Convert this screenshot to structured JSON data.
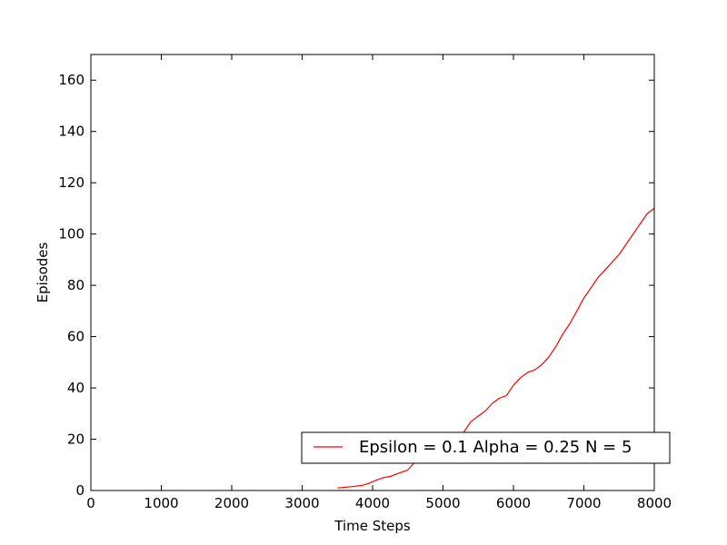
{
  "chart_data": {
    "type": "line",
    "xlabel": "Time Steps",
    "ylabel": "Episodes",
    "xlim": [
      0,
      8000
    ],
    "ylim": [
      0,
      170
    ],
    "xticks": [
      0,
      1000,
      2000,
      3000,
      4000,
      5000,
      6000,
      7000,
      8000
    ],
    "yticks": [
      0,
      20,
      40,
      60,
      80,
      100,
      120,
      140,
      160
    ],
    "grid": false,
    "legend_position": "lower-right",
    "series": [
      {
        "name": "Epsilon = 0.1 Alpha = 0.25 N = 5",
        "color": "#ff0000",
        "x": [
          3500,
          3700,
          3850,
          3950,
          4050,
          4150,
          4250,
          4400,
          4500,
          4600,
          4700,
          4800,
          4900,
          5000,
          5100,
          5200,
          5300,
          5400,
          5500,
          5600,
          5700,
          5800,
          5900,
          6000,
          6100,
          6200,
          6300,
          6400,
          6500,
          6600,
          6700,
          6800,
          6900,
          7000,
          7100,
          7200,
          7300,
          7400,
          7500,
          7600,
          7700,
          7800,
          7900,
          8000
        ],
        "y": [
          1,
          1.5,
          2,
          2.8,
          4,
          5,
          5.5,
          7,
          8,
          11,
          13,
          14.5,
          16,
          17,
          18.5,
          20,
          23,
          27,
          29,
          31,
          34,
          36,
          37,
          41,
          44,
          46,
          47,
          49,
          52,
          56,
          61,
          65,
          70,
          75,
          79,
          83,
          86,
          89,
          92,
          96,
          100,
          104,
          108,
          110
        ]
      }
    ]
  }
}
